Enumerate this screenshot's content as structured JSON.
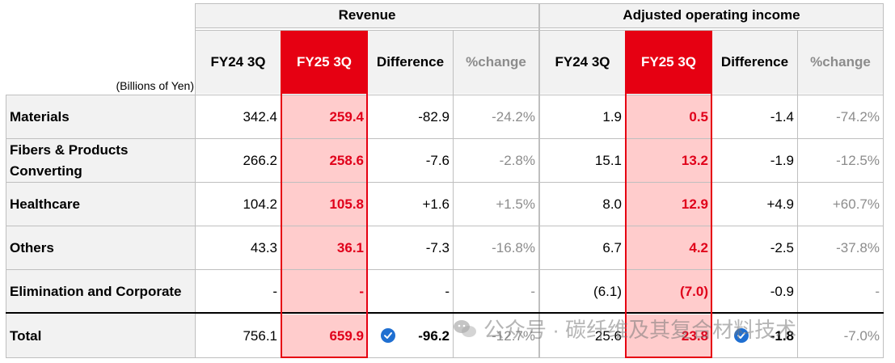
{
  "unit_note": "(Billions of Yen)",
  "groups": {
    "revenue": "Revenue",
    "operating_income": "Adjusted operating income"
  },
  "columns": [
    "FY24 3Q",
    "FY25 3Q",
    "Difference",
    "%change",
    "FY24 3Q",
    "FY25 3Q",
    "Difference",
    "%change"
  ],
  "rows": [
    {
      "label": "Materials",
      "values": [
        "342.4",
        "259.4",
        "-82.9",
        "-24.2%",
        "1.9",
        "0.5",
        "-1.4",
        "-74.2%"
      ]
    },
    {
      "label": "Fibers & Products\nConverting",
      "values": [
        "266.2",
        "258.6",
        "-7.6",
        "-2.8%",
        "15.1",
        "13.2",
        "-1.9",
        "-12.5%"
      ]
    },
    {
      "label": "Healthcare",
      "values": [
        "104.2",
        "105.8",
        "+1.6",
        "+1.5%",
        "8.0",
        "12.9",
        "+4.9",
        "+60.7%"
      ]
    },
    {
      "label": "Others",
      "values": [
        "43.3",
        "36.1",
        "-7.3",
        "-16.8%",
        "6.7",
        "4.2",
        "-2.5",
        "-37.8%"
      ]
    },
    {
      "label": "Elimination and Corporate",
      "values": [
        "-",
        "-",
        "-",
        "-",
        "(6.1)",
        "(7.0)",
        "-0.9",
        "-"
      ]
    },
    {
      "label": "Total",
      "values": [
        "756.1",
        "659.9",
        "-96.2",
        "-12.7%",
        "25.6",
        "23.8",
        "-1.8",
        "-7.0%"
      ]
    }
  ],
  "watermark": "公众号 · 碳纤维及其复合材料技术",
  "colors": {
    "accent_red": "#e60012",
    "highlight_pink": "#ffcccc",
    "check_blue": "#1f6fd1"
  }
}
